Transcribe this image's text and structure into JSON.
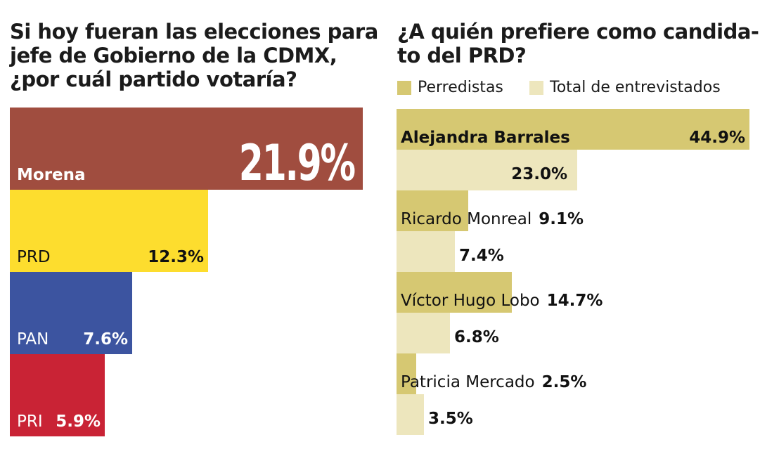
{
  "left_title": [
    "Si hoy fueran las elecciones para",
    "jefe de Gobierno de la CDMX,",
    "¿por cuál partido votaría?"
  ],
  "right_title": [
    "¿A quién prefiere como candida-",
    "to del PRD?"
  ],
  "colors": {
    "morena": "#a04d3f",
    "prd": "#fddd2e",
    "pan": "#3c54a0",
    "pri": "#c92335",
    "perredistas": "#d6c872",
    "total": "#ede6bd"
  },
  "chart_data": [
    {
      "type": "bar",
      "orientation": "horizontal",
      "title": "Si hoy fueran las elecciones para jefe de Gobierno de la CDMX, ¿por cuál partido votaría?",
      "categories": [
        "Morena",
        "PRD",
        "PAN",
        "PRI"
      ],
      "values": [
        21.9,
        12.3,
        7.6,
        5.9
      ],
      "value_labels": [
        "21.9%",
        "12.3%",
        "7.6%",
        "5.9%"
      ],
      "xlim": [
        0,
        21.9
      ]
    },
    {
      "type": "bar",
      "orientation": "horizontal",
      "title": "¿A quién prefiere como candidato del PRD?",
      "legend": [
        "Perredistas",
        "Total de entrevistados"
      ],
      "categories": [
        "Alejandra Barrales",
        "Ricardo Monreal",
        "Víctor Hugo Lobo",
        "Patricia Mercado"
      ],
      "series": [
        {
          "name": "Perredistas",
          "values": [
            44.9,
            9.1,
            14.7,
            2.5
          ],
          "labels": [
            "44.9%",
            "9.1%",
            "14.7%",
            "2.5%"
          ]
        },
        {
          "name": "Total de entrevistados",
          "values": [
            23.0,
            7.4,
            6.8,
            3.5
          ],
          "labels": [
            "23.0%",
            "7.4%",
            "6.8%",
            "3.5%"
          ]
        }
      ],
      "xlim": [
        0,
        44.9
      ]
    }
  ]
}
